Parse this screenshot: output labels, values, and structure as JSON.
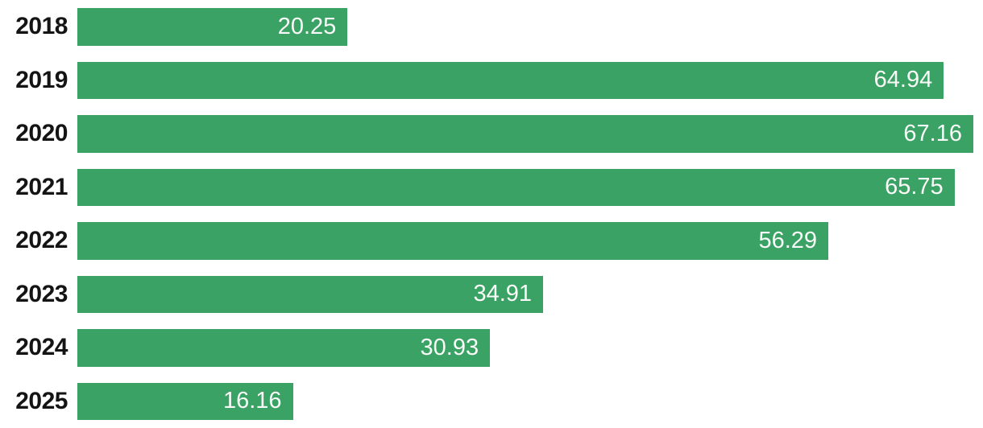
{
  "chart_data": {
    "type": "bar",
    "orientation": "horizontal",
    "title": "",
    "xlabel": "",
    "ylabel": "",
    "categories": [
      "2018",
      "2019",
      "2020",
      "2021",
      "2022",
      "2023",
      "2024",
      "2025"
    ],
    "values": [
      20.25,
      64.94,
      67.16,
      65.75,
      56.29,
      34.91,
      30.93,
      16.16
    ],
    "value_labels": [
      "20.25",
      "64.94",
      "67.16",
      "65.75",
      "56.29",
      "34.91",
      "30.93",
      "16.16"
    ],
    "xlim": [
      0,
      67.16
    ],
    "grid": false,
    "legend": false,
    "value_label_position": "inside-end",
    "colors": {
      "bar": "#3aa264",
      "value_label": "#fafaf8",
      "category_label": "#141414",
      "background": "#ffffff"
    }
  }
}
